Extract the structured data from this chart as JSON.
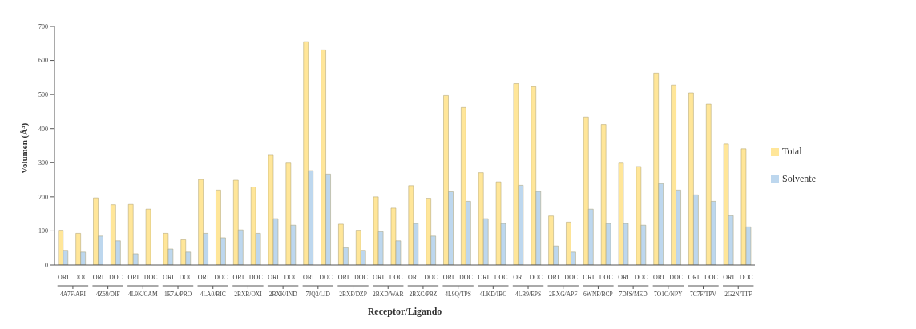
{
  "chart_data": {
    "type": "bar",
    "xlabel": "Receptor/Ligando",
    "ylabel": "Volumen (Å³)",
    "categories": [
      "ORI",
      "DOC",
      "ORI",
      "DOC",
      "ORI",
      "DOC",
      "ORI",
      "DOC",
      "ORI",
      "DOC",
      "ORI",
      "DOC",
      "ORI",
      "DOC",
      "ORI",
      "DOC",
      "ORI",
      "DOC",
      "ORI",
      "DOC",
      "ORI",
      "DOC",
      "ORI",
      "DOC",
      "ORI",
      "DOC",
      "ORI",
      "DOC",
      "ORI",
      "DOC",
      "ORI",
      "DOC",
      "ORI",
      "DOC",
      "ORI",
      "DOC",
      "ORI",
      "DOC",
      "ORI",
      "DOC"
    ],
    "annotations": [
      "4A7F/ARI",
      "4Z69/DIF",
      "4L9K/CAM",
      "1E7A/PRO",
      "4LA0/BIC",
      "2BXB/OXI",
      "2BXK/IND",
      "7JQ3/LID",
      "2BXF/DZP",
      "2BXD/WAR",
      "2BXC/PBZ",
      "4L9Q/TPS",
      "4LKD/IBC",
      "4LB9/EPS",
      "2BXG/APF",
      "6WNF/BCP",
      "7DJS/MED",
      "7O1O/NPY",
      "7C7F/TPV",
      "2G2N/TTF"
    ],
    "series": [
      {
        "name": "Total",
        "color": "#ffe699",
        "values": [
          102,
          93,
          197,
          177,
          178,
          164,
          93,
          74,
          251,
          220,
          249,
          229,
          322,
          299,
          655,
          631,
          120,
          102,
          200,
          167,
          233,
          196,
          497,
          462,
          271,
          244,
          532,
          523,
          144,
          126,
          434,
          412,
          299,
          289,
          563,
          528,
          505,
          472,
          355,
          341
        ]
      },
      {
        "name": "Solvente",
        "color": "#bdd7ee",
        "values": [
          43,
          38,
          85,
          71,
          33,
          0,
          47,
          38,
          93,
          80,
          103,
          93,
          136,
          117,
          277,
          267,
          51,
          43,
          98,
          71,
          122,
          85,
          215,
          187,
          136,
          122,
          234,
          216,
          56,
          38,
          164,
          122,
          122,
          117,
          239,
          220,
          206,
          187,
          145,
          112
        ]
      }
    ],
    "ylim": [
      0,
      700
    ],
    "yticks": [
      0,
      100,
      200,
      300,
      400,
      500,
      600,
      700
    ],
    "grid": false,
    "legend": "right"
  }
}
